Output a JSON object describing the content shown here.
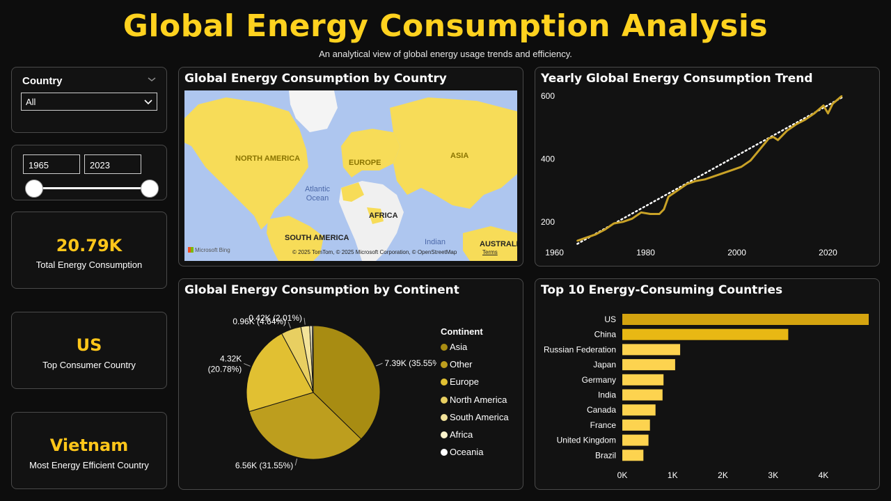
{
  "header": {
    "title": "Global Energy Consumption Analysis",
    "subtitle": "An analytical view of global energy usage trends and efficiency."
  },
  "filters": {
    "country_label": "Country",
    "country_value": "All",
    "year_start": "1965",
    "year_end": "2023",
    "year_range": [
      1965,
      2023
    ]
  },
  "kpis": [
    {
      "value": "20.79K",
      "label": "Total Energy Consumption"
    },
    {
      "value": "US",
      "label": "Top Consumer Country"
    },
    {
      "value": "Vietnam",
      "label": "Most Energy Efficient Country"
    }
  ],
  "map": {
    "title": "Global Energy Consumption by Country",
    "labels": [
      "NORTH AMERICA",
      "EUROPE",
      "ASIA",
      "AFRICA",
      "SOUTH AMERICA",
      "AUSTRALI"
    ],
    "oceans": [
      "Atlantic Ocean",
      "Indian"
    ],
    "bing": "Microsoft Bing",
    "attribution": "© 2025 TomTom, © 2025 Microsoft Corporation, © OpenStreetMap",
    "terms": "Terms"
  },
  "trend": {
    "title": "Yearly Global Energy Consumption Trend"
  },
  "pie": {
    "title": "Global Energy Consumption by Continent",
    "legend_title": "Continent",
    "legend": [
      "Asia",
      "Other",
      "Europe",
      "North America",
      "South America",
      "Africa",
      "Oceania"
    ]
  },
  "top10": {
    "title": "Top 10 Energy-Consuming Countries"
  },
  "colors": {
    "accent": "#ffd21f",
    "line": "#c9a227",
    "trendline": "#ffffff"
  },
  "chart_data": [
    {
      "type": "line",
      "title": "Yearly Global Energy Consumption Trend",
      "x": [
        1965,
        1967,
        1969,
        1971,
        1973,
        1975,
        1977,
        1979,
        1981,
        1983,
        1984,
        1985,
        1987,
        1989,
        1991,
        1993,
        1995,
        1997,
        1999,
        2001,
        2003,
        2005,
        2007,
        2008,
        2009,
        2011,
        2013,
        2015,
        2017,
        2019,
        2020,
        2021,
        2023
      ],
      "values": [
        140,
        150,
        160,
        175,
        195,
        200,
        210,
        230,
        225,
        225,
        240,
        280,
        300,
        320,
        330,
        335,
        345,
        355,
        365,
        375,
        395,
        430,
        465,
        470,
        460,
        490,
        510,
        525,
        545,
        570,
        545,
        575,
        600
      ],
      "trendline": [
        [
          1965,
          130
        ],
        [
          2023,
          595
        ]
      ],
      "xticks": [
        1960,
        1980,
        2000,
        2020
      ],
      "yticks": [
        200,
        400,
        600
      ],
      "xlim": [
        1957,
        2030
      ],
      "ylim": [
        120,
        620
      ],
      "xlabel": "",
      "ylabel": ""
    },
    {
      "type": "pie",
      "title": "Global Energy Consumption by Continent",
      "categories": [
        "Asia",
        "Other",
        "Europe",
        "North America",
        "South America",
        "Africa",
        "Oceania"
      ],
      "values": [
        7.39,
        6.56,
        4.32,
        0.96,
        0.42,
        0.12,
        0.05
      ],
      "data_labels": [
        "7.39K (35.55%)",
        "6.56K (31.55%)",
        "4.32K (20.78%)",
        "0.96K (4.64%)",
        "0.42K (2.01%)",
        "",
        ""
      ],
      "colors": [
        "#a88c12",
        "#bd9e1e",
        "#e1c032",
        "#e8cf61",
        "#f3e39a",
        "#fbf3cc",
        "#ffffff"
      ],
      "legend_position": "right"
    },
    {
      "type": "bar",
      "orientation": "horizontal",
      "title": "Top 10 Energy-Consuming Countries",
      "categories": [
        "US",
        "China",
        "Russian Federation",
        "Japan",
        "Germany",
        "India",
        "Canada",
        "France",
        "United Kingdom",
        "Brazil"
      ],
      "values": [
        4.9,
        3.3,
        1.15,
        1.05,
        0.82,
        0.8,
        0.66,
        0.55,
        0.52,
        0.42
      ],
      "xticks": [
        "0K",
        "1K",
        "2K",
        "3K",
        "4K"
      ],
      "xlim": [
        0,
        4.9
      ],
      "colors": [
        "#d4a30f",
        "#e8b814",
        "#fdd34f",
        "#fdd34f",
        "#fdd34f",
        "#fdd34f",
        "#fdd34f",
        "#fdd34f",
        "#fdd34f",
        "#fdd34f"
      ]
    }
  ]
}
